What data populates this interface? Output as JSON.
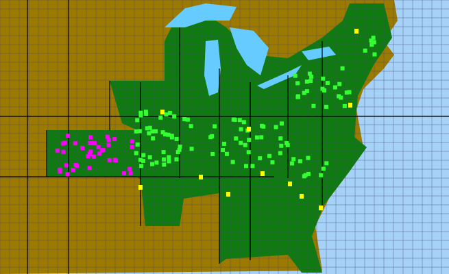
{
  "map": {
    "colors": {
      "ocean": "#a6d2f7",
      "lakes": "#66ccff",
      "outside_range": "#9c7a00",
      "native_present": "#0f7a0f",
      "highlight_bright_green": "#33ff33",
      "highlight_magenta": "#ff00ff",
      "highlight_yellow": "#ffff00",
      "county_lines": "#4a4a7a",
      "state_lines": "#000000"
    }
  }
}
